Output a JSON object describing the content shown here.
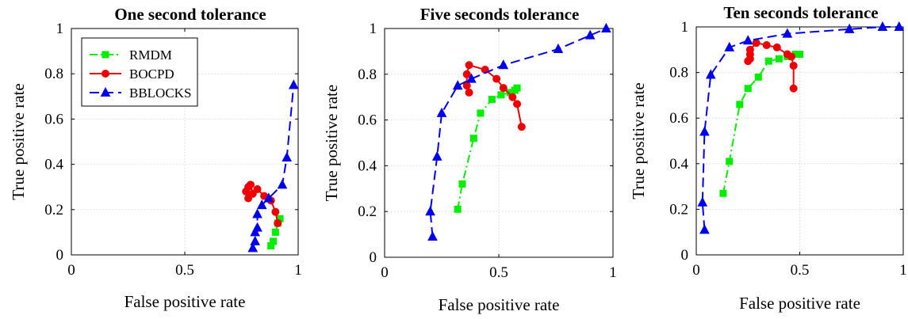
{
  "chart_data": [
    {
      "type": "line",
      "title": "One second tolerance",
      "xlabel": "False positive rate",
      "ylabel": "True positive rate",
      "xlim": [
        0,
        1
      ],
      "ylim": [
        0,
        1
      ],
      "xticks": [
        "0",
        "0.5",
        "1"
      ],
      "yticks": [
        "0",
        "0.2",
        "0.4",
        "0.6",
        "0.8",
        "1"
      ],
      "grid": true,
      "legend": {
        "placement": "top-left",
        "entries": [
          "RMDM",
          "BOCPD",
          "BBLOCKS"
        ]
      },
      "series": [
        {
          "name": "RMDM",
          "color": "#00ee00",
          "marker": "square",
          "dash": "dash-dot",
          "x": [
            0.88,
            0.89,
            0.9,
            0.91,
            0.92
          ],
          "y": [
            0.04,
            0.06,
            0.1,
            0.14,
            0.16
          ]
        },
        {
          "name": "BOCPD",
          "color": "#ee0000",
          "marker": "circle",
          "dash": "solid",
          "x": [
            0.78,
            0.77,
            0.78,
            0.79,
            0.8,
            0.82,
            0.85,
            0.88,
            0.9,
            0.91
          ],
          "y": [
            0.25,
            0.28,
            0.3,
            0.31,
            0.27,
            0.29,
            0.26,
            0.24,
            0.19,
            0.14
          ]
        },
        {
          "name": "BBLOCKS",
          "color": "#0000ee",
          "marker": "triangle",
          "dash": "dash",
          "x": [
            0.8,
            0.81,
            0.81,
            0.82,
            0.82,
            0.84,
            0.87,
            0.93,
            0.95,
            0.98
          ],
          "y": [
            0.03,
            0.06,
            0.1,
            0.12,
            0.18,
            0.22,
            0.25,
            0.31,
            0.43,
            0.75
          ]
        }
      ]
    },
    {
      "type": "line",
      "title": "Five seconds tolerance",
      "xlabel": "False positive rate",
      "ylabel": "True positive rate",
      "xlim": [
        0,
        1
      ],
      "ylim": [
        0,
        1
      ],
      "xticks": [
        "0",
        "0.5",
        "1"
      ],
      "yticks": [
        "0",
        "0.2",
        "0.4",
        "0.6",
        "0.8",
        "1"
      ],
      "grid": true,
      "series": [
        {
          "name": "RMDM",
          "color": "#00ee00",
          "marker": "square",
          "dash": "dash-dot",
          "x": [
            0.32,
            0.34,
            0.39,
            0.42,
            0.47,
            0.51,
            0.55,
            0.57,
            0.58
          ],
          "y": [
            0.21,
            0.32,
            0.52,
            0.63,
            0.69,
            0.71,
            0.72,
            0.73,
            0.74
          ]
        },
        {
          "name": "BOCPD",
          "color": "#ee0000",
          "marker": "circle",
          "dash": "solid",
          "x": [
            0.6,
            0.58,
            0.56,
            0.52,
            0.49,
            0.44,
            0.37,
            0.36,
            0.36,
            0.37
          ],
          "y": [
            0.57,
            0.67,
            0.7,
            0.74,
            0.78,
            0.82,
            0.84,
            0.8,
            0.75,
            0.72
          ]
        },
        {
          "name": "BBLOCKS",
          "color": "#0000ee",
          "marker": "triangle",
          "dash": "dash",
          "x": [
            0.21,
            0.2,
            0.23,
            0.25,
            0.32,
            0.38,
            0.52,
            0.76,
            0.9,
            0.97
          ],
          "y": [
            0.09,
            0.2,
            0.44,
            0.63,
            0.75,
            0.78,
            0.84,
            0.91,
            0.97,
            1.0
          ]
        }
      ]
    },
    {
      "type": "line",
      "title": "Ten seconds tolerance",
      "xlabel": "False positive rate",
      "ylabel": "True positive rate",
      "xlim": [
        0,
        1
      ],
      "ylim": [
        0,
        1
      ],
      "xticks": [
        "0",
        "0.5",
        "1"
      ],
      "yticks": [
        "0",
        "0.2",
        "0.4",
        "0.6",
        "0.8",
        "1"
      ],
      "grid": true,
      "series": [
        {
          "name": "RMDM",
          "color": "#00ee00",
          "marker": "square",
          "dash": "dash-dot",
          "x": [
            0.13,
            0.16,
            0.21,
            0.25,
            0.3,
            0.35,
            0.4,
            0.44,
            0.48,
            0.5
          ],
          "y": [
            0.27,
            0.41,
            0.66,
            0.73,
            0.78,
            0.85,
            0.86,
            0.87,
            0.88,
            0.88
          ]
        },
        {
          "name": "BOCPD",
          "color": "#ee0000",
          "marker": "circle",
          "dash": "solid",
          "x": [
            0.47,
            0.47,
            0.46,
            0.44,
            0.39,
            0.34,
            0.29,
            0.26,
            0.26,
            0.26,
            0.25
          ],
          "y": [
            0.73,
            0.83,
            0.87,
            0.88,
            0.91,
            0.92,
            0.93,
            0.9,
            0.88,
            0.86,
            0.85
          ]
        },
        {
          "name": "BBLOCKS",
          "color": "#0000ee",
          "marker": "triangle",
          "dash": "dash",
          "x": [
            0.04,
            0.03,
            0.04,
            0.07,
            0.16,
            0.25,
            0.44,
            0.74,
            0.9,
            0.98
          ],
          "y": [
            0.11,
            0.23,
            0.54,
            0.79,
            0.91,
            0.94,
            0.97,
            0.99,
            1.0,
            1.0
          ]
        }
      ]
    }
  ]
}
